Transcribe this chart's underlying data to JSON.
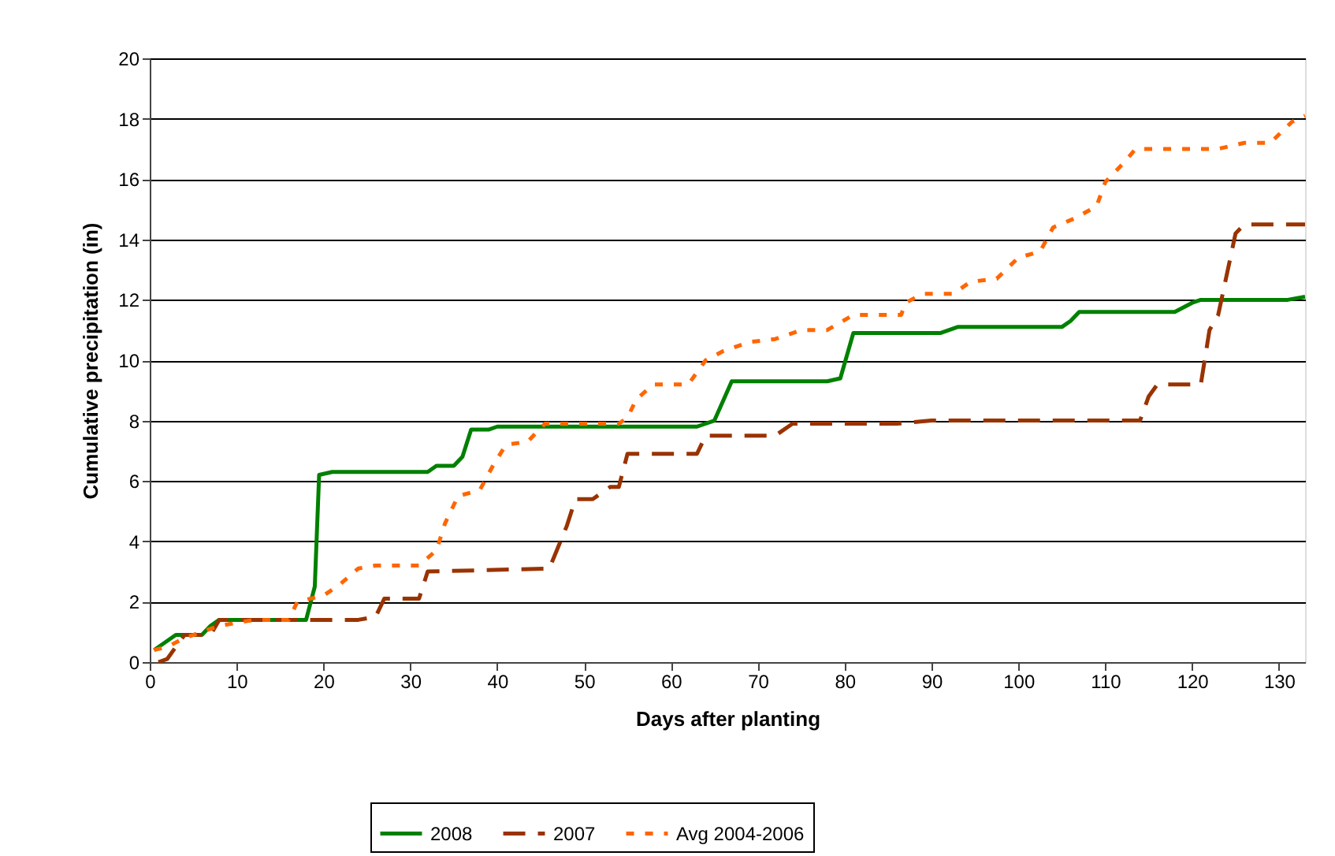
{
  "chart_data": {
    "type": "line",
    "xlabel": "Days after planting",
    "ylabel": "Cumulative precipitation (in)",
    "xlim": [
      0,
      133
    ],
    "xticks": [
      0,
      10,
      20,
      30,
      40,
      50,
      60,
      70,
      80,
      90,
      100,
      110,
      120,
      130
    ],
    "ylim": [
      0,
      20
    ],
    "yticks": [
      0,
      2,
      4,
      6,
      8,
      10,
      12,
      14,
      16,
      18,
      20
    ],
    "grid": "y",
    "legend": "bottom",
    "marker": "none",
    "series": [
      {
        "name": "2008",
        "color": "#008000",
        "line_style": "solid",
        "x": [
          0.5,
          3,
          6,
          7,
          8,
          18,
          19,
          19.5,
          21,
          32,
          33,
          35,
          36,
          37,
          39,
          40,
          63,
          65,
          67,
          78,
          79.5,
          81,
          91,
          93,
          105,
          106,
          107,
          118,
          120,
          121,
          131,
          133
        ],
        "values": [
          0.4,
          0.9,
          0.9,
          1.2,
          1.4,
          1.4,
          2.5,
          6.2,
          6.3,
          6.3,
          6.5,
          6.5,
          6.8,
          7.7,
          7.7,
          7.8,
          7.8,
          8.0,
          9.3,
          9.3,
          9.4,
          10.9,
          10.9,
          11.1,
          11.1,
          11.3,
          11.6,
          11.6,
          11.9,
          12.0,
          12.0,
          12.1
        ]
      },
      {
        "name": "2007",
        "color": "#993300",
        "line_style": "dashed",
        "x": [
          1,
          2,
          4,
          7,
          8,
          24,
          26,
          27,
          31,
          32,
          46,
          48,
          49,
          51,
          53,
          54,
          55,
          63,
          64,
          72,
          74,
          86,
          90,
          114,
          115,
          116,
          121,
          122,
          123,
          125,
          126,
          133
        ],
        "values": [
          0,
          0.1,
          0.9,
          0.9,
          1.4,
          1.4,
          1.5,
          2.1,
          2.1,
          3.0,
          3.1,
          4.5,
          5.4,
          5.4,
          5.8,
          5.8,
          6.9,
          6.9,
          7.5,
          7.5,
          7.9,
          7.9,
          8.0,
          8.0,
          8.8,
          9.2,
          9.2,
          11.0,
          11.5,
          14.2,
          14.5,
          14.5
        ]
      },
      {
        "name": "Avg 2004-2006",
        "color": "#ff6600",
        "line_style": "dotted",
        "x": [
          0.5,
          2,
          4,
          6,
          8,
          10,
          12,
          16,
          17,
          20,
          22,
          24,
          26,
          31,
          33,
          34,
          35.5,
          38,
          39.5,
          41,
          43.5,
          45.5,
          54,
          55,
          56,
          58,
          62,
          64,
          66,
          69,
          72,
          75,
          78,
          81,
          86.5,
          87,
          89,
          92.5,
          94.5,
          97.5,
          100,
          102.5,
          104,
          106.5,
          109,
          110,
          112,
          113.5,
          123,
          126,
          129,
          131.5,
          133
        ],
        "values": [
          0.4,
          0.5,
          0.8,
          1.0,
          1.2,
          1.3,
          1.4,
          1.4,
          2.0,
          2.2,
          2.6,
          3.1,
          3.2,
          3.2,
          3.7,
          4.6,
          5.5,
          5.7,
          6.5,
          7.2,
          7.3,
          7.9,
          7.9,
          8.1,
          8.7,
          9.2,
          9.2,
          10.0,
          10.3,
          10.6,
          10.7,
          11.0,
          11.0,
          11.5,
          11.5,
          11.9,
          12.2,
          12.2,
          12.6,
          12.7,
          13.4,
          13.6,
          14.4,
          14.7,
          15.1,
          15.9,
          16.5,
          17.0,
          17.0,
          17.2,
          17.2,
          17.9,
          18.1
        ]
      }
    ]
  }
}
